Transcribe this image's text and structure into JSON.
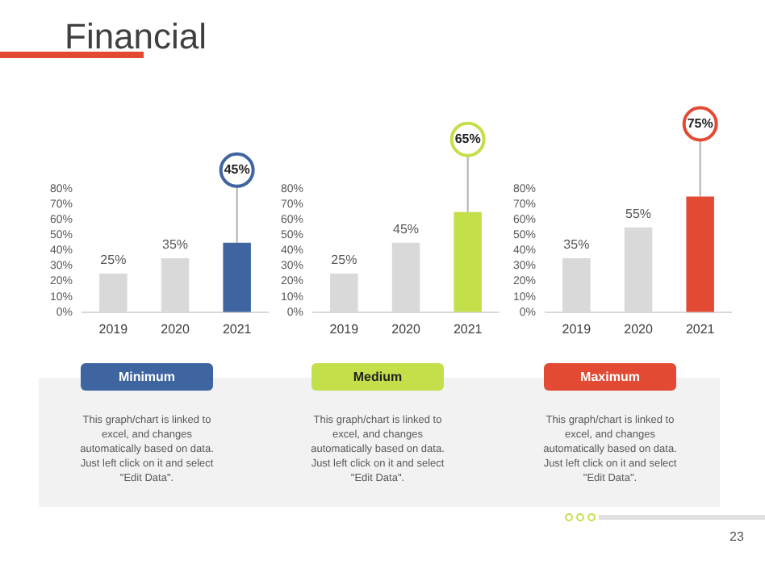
{
  "chart_data": [
    {
      "type": "bar",
      "title": "Financial",
      "categories": [
        "2019",
        "2020",
        "2021"
      ],
      "values": [
        25,
        35,
        45
      ],
      "colors": [
        "#d9d9d9",
        "#d9d9d9",
        "#3f65a0"
      ],
      "value_labels": [
        "25%",
        "35%",
        "45%"
      ],
      "ylim": [
        0,
        80
      ],
      "yticks": [
        {
          "value": 0,
          "label": "0%"
        },
        {
          "value": 10,
          "label": "10%"
        },
        {
          "value": 20,
          "label": "20%"
        },
        {
          "value": 30,
          "label": "30%"
        },
        {
          "value": 40,
          "label": "40%"
        },
        {
          "value": 50,
          "label": "50%"
        },
        {
          "value": 60,
          "label": "60%"
        },
        {
          "value": 70,
          "label": "70%"
        },
        {
          "value": 80,
          "label": "80%"
        }
      ],
      "grid": false,
      "legend": false,
      "annotations": [
        "Minimum",
        "This graph/chart is linked to excel, and changes automatically based on data. Just left click on it and select \"Edit Data\"."
      ]
    },
    {
      "type": "bar",
      "categories": [
        "2019",
        "2020",
        "2021"
      ],
      "values": [
        25,
        45,
        65
      ],
      "colors": [
        "#d9d9d9",
        "#d9d9d9",
        "#c3e04a"
      ],
      "value_labels": [
        "25%",
        "45%",
        "65%"
      ],
      "ylim": [
        0,
        80
      ],
      "yticks": [
        {
          "value": 0,
          "label": "0%"
        },
        {
          "value": 10,
          "label": "10%"
        },
        {
          "value": 20,
          "label": "20%"
        },
        {
          "value": 30,
          "label": "30%"
        },
        {
          "value": 40,
          "label": "40%"
        },
        {
          "value": 50,
          "label": "50%"
        },
        {
          "value": 60,
          "label": "60%"
        },
        {
          "value": 70,
          "label": "70%"
        },
        {
          "value": 80,
          "label": "80%"
        }
      ],
      "grid": false,
      "legend": false,
      "annotations": [
        "Medium",
        "This graph/chart is linked to excel, and changes automatically based on data. Just left click on it and select \"Edit Data\"."
      ]
    },
    {
      "type": "bar",
      "categories": [
        "2019",
        "2020",
        "2021"
      ],
      "values": [
        35,
        55,
        75
      ],
      "colors": [
        "#d9d9d9",
        "#d9d9d9",
        "#e24a33"
      ],
      "value_labels": [
        "35%",
        "55%",
        "75%"
      ],
      "ylim": [
        0,
        80
      ],
      "yticks": [
        {
          "value": 0,
          "label": "0%"
        },
        {
          "value": 10,
          "label": "10%"
        },
        {
          "value": 20,
          "label": "20%"
        },
        {
          "value": 30,
          "label": "30%"
        },
        {
          "value": 40,
          "label": "40%"
        },
        {
          "value": 50,
          "label": "50%"
        },
        {
          "value": 60,
          "label": "60%"
        },
        {
          "value": 70,
          "label": "70%"
        },
        {
          "value": 80,
          "label": "80%"
        }
      ],
      "grid": false,
      "legend": false,
      "annotations": [
        "Maximum",
        "This graph/chart is linked to excel, and changes automatically based on data. Just left click on it and select \"Edit Data\".",
        "23"
      ]
    }
  ]
}
